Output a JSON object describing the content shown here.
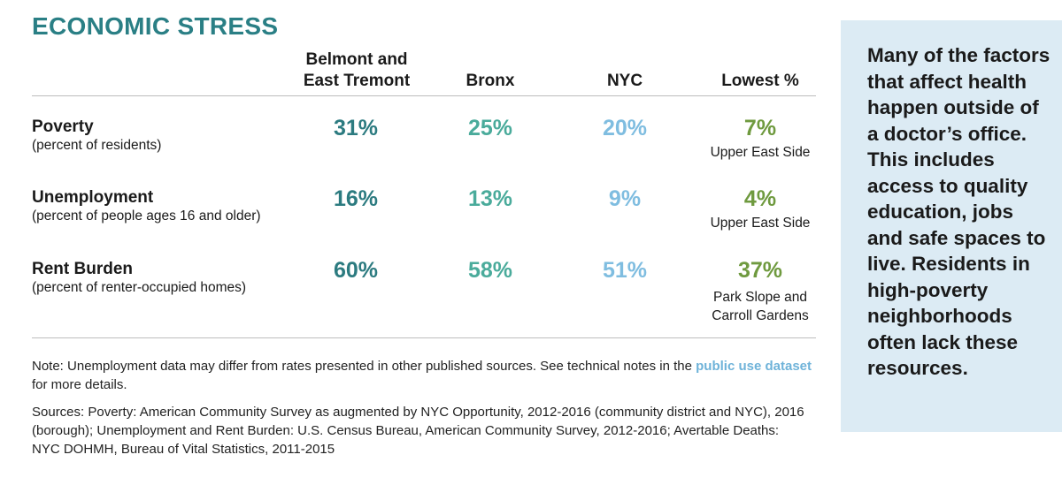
{
  "title": "ECONOMIC STRESS",
  "columns": {
    "belmont": "Belmont and East Tremont",
    "belmont_line1": "Belmont and",
    "belmont_line2": "East Tremont",
    "bronx": "Bronx",
    "nyc": "NYC",
    "lowest": "Lowest %"
  },
  "rows": [
    {
      "label": "Poverty",
      "sublabel": "(percent of residents)",
      "belmont": "31%",
      "bronx": "25%",
      "nyc": "20%",
      "lowest": "7%",
      "lowest_area_line1": "Upper East Side",
      "lowest_area_line2": ""
    },
    {
      "label": "Unemployment",
      "sublabel": "(percent of people ages 16 and older)",
      "belmont": "16%",
      "bronx": "13%",
      "nyc": "9%",
      "lowest": "4%",
      "lowest_area_line1": "Upper East Side",
      "lowest_area_line2": ""
    },
    {
      "label": "Rent Burden",
      "sublabel": "(percent of renter-occupied homes)",
      "belmont": "60%",
      "bronx": "58%",
      "nyc": "51%",
      "lowest": "37%",
      "lowest_area_line1": "Park Slope and",
      "lowest_area_line2": "Carroll Gardens"
    }
  ],
  "note": {
    "prefix": "Note: Unemployment data may differ from rates presented in other published sources. See technical notes in the ",
    "link": "public use dataset",
    "suffix": "for more details."
  },
  "sources": {
    "line1": "Sources: Poverty: American Community Survey as augmented by NYC Opportunity, 2012-2016 (community district and NYC), 2016",
    "line2": "(borough); Unemployment and Rent Burden: U.S. Census Bureau, American Community Survey, 2012-2016; Avertable Deaths:",
    "line3": "NYC DOHMH, Bureau of Vital Statistics, 2011-2015"
  },
  "sidebar": {
    "text": "Many of the factors that affect health happen outside of a doctor’s office. This includes access to quality education, jobs and safe spaces to live. Residents in high-poverty neighborhoods often lack these resources."
  },
  "colors": {
    "title": "#2a7f85",
    "belmont": "#2c7b80",
    "bronx": "#4aab9b",
    "nyc": "#7fbde0",
    "lowest": "#6f9a3f",
    "link": "#6fb3d9",
    "sidebar_bg": "#dcebf4"
  }
}
